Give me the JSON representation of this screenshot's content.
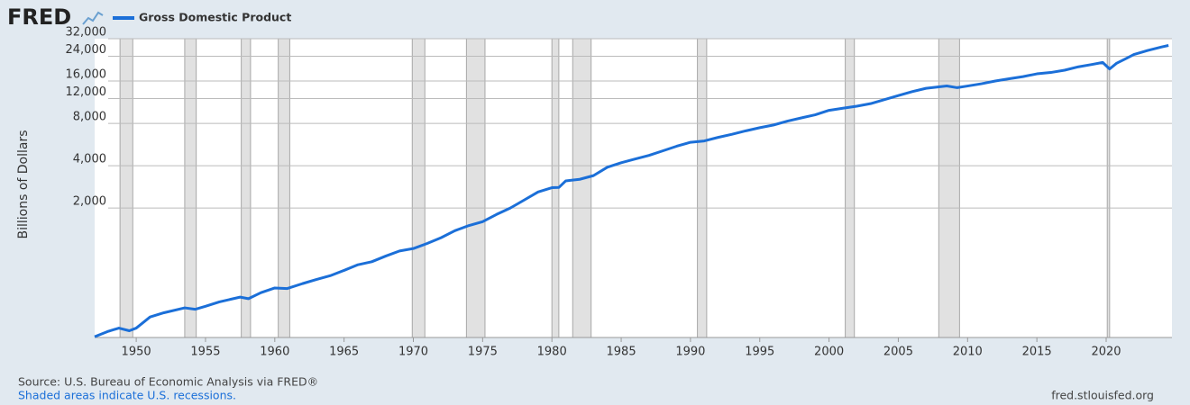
{
  "logo": "FRED",
  "source": "Source: U.S. Bureau of Economic Analysis via FRED®",
  "note": "Shaded areas indicate U.S. recessions.",
  "site": "fred.stlouisfed.org",
  "chart_data": {
    "type": "line",
    "ylabel": "Billions of Dollars",
    "log_scale": true,
    "grid": true,
    "legend": "top-left",
    "series": [
      {
        "name": "Gross Domestic Product",
        "color": "#1b6fd8",
        "x": [
          1947,
          1948,
          1948.75,
          1949.5,
          1950,
          1951,
          1952,
          1953.5,
          1954.25,
          1955,
          1956,
          1957.5,
          1958.1,
          1959,
          1960,
          1960.9,
          1962,
          1963,
          1964,
          1965,
          1966,
          1967,
          1968,
          1969,
          1970,
          1971,
          1972,
          1973,
          1974,
          1975,
          1976,
          1977,
          1978,
          1979,
          1980,
          1980.5,
          1981,
          1982,
          1983,
          1984,
          1985,
          1986,
          1987,
          1988,
          1989,
          1990,
          1991,
          1992,
          1993,
          1994,
          1995,
          1996,
          1997,
          1998,
          1999,
          2000,
          2001,
          2002,
          2003,
          2004,
          2005,
          2006,
          2007,
          2008.5,
          2009.25,
          2010,
          2011,
          2012,
          2013,
          2014,
          2015,
          2016,
          2017,
          2018,
          2019,
          2019.75,
          2020.25,
          2020.75,
          2021.5,
          2022,
          2023,
          2024,
          2024.5
        ],
        "values": [
          243,
          266,
          280,
          268,
          280,
          336,
          360,
          390,
          381,
          400,
          430,
          465,
          453,
          500,
          540,
          535,
          580,
          620,
          660,
          720,
          790,
          830,
          910,
          990,
          1030,
          1120,
          1230,
          1380,
          1500,
          1600,
          1800,
          2000,
          2280,
          2600,
          2790,
          2800,
          3120,
          3200,
          3400,
          3900,
          4200,
          4460,
          4730,
          5100,
          5500,
          5870,
          6000,
          6360,
          6690,
          7080,
          7450,
          7790,
          8300,
          8750,
          9200,
          9900,
          10250,
          10600,
          11050,
          11800,
          12600,
          13450,
          14200,
          14770,
          14350,
          14750,
          15300,
          16000,
          16600,
          17200,
          18000,
          18400,
          19100,
          20200,
          21000,
          21700,
          19500,
          21400,
          23300,
          24700,
          26400,
          27950,
          28650
        ]
      }
    ],
    "recessions": [
      [
        1948.83,
        1949.75
      ],
      [
        1953.5,
        1954.33
      ],
      [
        1957.58,
        1958.25
      ],
      [
        1960.25,
        1961.08
      ],
      [
        1969.92,
        1970.83
      ],
      [
        1973.83,
        1975.17
      ],
      [
        1980.0,
        1980.5
      ],
      [
        1981.5,
        1982.83
      ],
      [
        1990.5,
        1991.17
      ],
      [
        2001.17,
        2001.83
      ],
      [
        2007.92,
        2009.42
      ],
      [
        2020.08,
        2020.25
      ]
    ],
    "recession_color": "#e1e1e1",
    "xlim": [
      1947,
      2024.75
    ],
    "xticks": [
      1950,
      1955,
      1960,
      1965,
      1970,
      1975,
      1980,
      1985,
      1990,
      1995,
      2000,
      2005,
      2010,
      2015,
      2020
    ],
    "ylim": [
      240,
      32000
    ],
    "yticks": [
      {
        "value": 2000,
        "label": "2,000"
      },
      {
        "value": 4000,
        "label": "4,000"
      },
      {
        "value": 8000,
        "label": "8,000"
      },
      {
        "value": 12000,
        "label": "12,000"
      },
      {
        "value": 16000,
        "label": "16,000"
      },
      {
        "value": 24000,
        "label": "24,000"
      },
      {
        "value": 32000,
        "label": "32,000"
      }
    ]
  }
}
